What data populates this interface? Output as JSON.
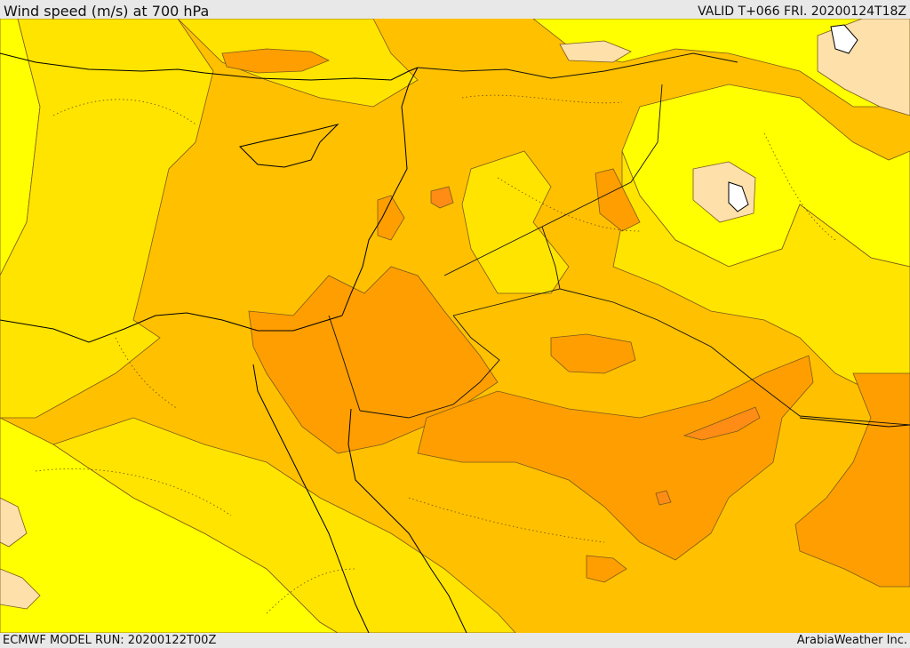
{
  "header": {
    "title": "Wind speed (m/s) at 700 hPa",
    "valid": "VALID T+066 FRI. 20200124T18Z"
  },
  "footer": {
    "model_run": "ECMWF MODEL RUN: 20200122T00Z",
    "credit": "ArabiaWeather Inc."
  },
  "colors": {
    "band_lowest": "#ffff00",
    "band_low": "#ffe400",
    "band_mid": "#ffc000",
    "band_high": "#ff9e00",
    "band_higher": "#ff8c14",
    "band_calm": "#fde0aa",
    "lake": "#ffffff",
    "coast": "#000000",
    "contour": "#7a5a1e"
  }
}
